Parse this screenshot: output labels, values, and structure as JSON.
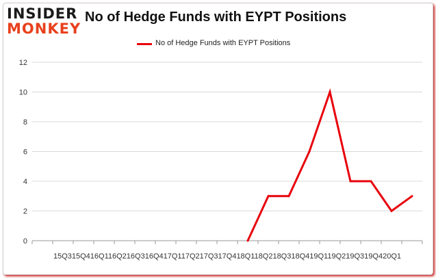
{
  "brand": {
    "line1": "INSIDER",
    "line2": "MONKEY",
    "accent": "#e8401c"
  },
  "title": "No of Hedge Funds with EYPT Positions",
  "chart_data": {
    "type": "line",
    "title": "No of Hedge Funds with EYPT Positions",
    "xlabel": "",
    "ylabel": "",
    "x_tick_text": "15Q315Q416Q116Q216Q316Q417Q117Q217Q317Q418Q118Q218Q318Q419Q119Q219Q319Q420Q1",
    "categories": [
      "15Q3",
      "15Q4",
      "16Q1",
      "16Q2",
      "16Q3",
      "16Q4",
      "17Q1",
      "17Q2",
      "17Q3",
      "17Q4",
      "18Q1",
      "18Q2",
      "18Q3",
      "18Q4",
      "19Q1",
      "19Q2",
      "19Q3",
      "19Q4",
      "20Q1"
    ],
    "series": [
      {
        "name": "No of Hedge Funds with EYPT Positions",
        "color": "#e8000b",
        "values": [
          null,
          null,
          null,
          null,
          null,
          null,
          null,
          null,
          null,
          null,
          0,
          3,
          3,
          6,
          10,
          4,
          4,
          2,
          3
        ]
      }
    ],
    "ylim": [
      0,
      12
    ],
    "yticks": [
      0,
      2,
      4,
      6,
      8,
      10,
      12
    ],
    "grid": "horizontal",
    "legend_position": "top-center"
  }
}
